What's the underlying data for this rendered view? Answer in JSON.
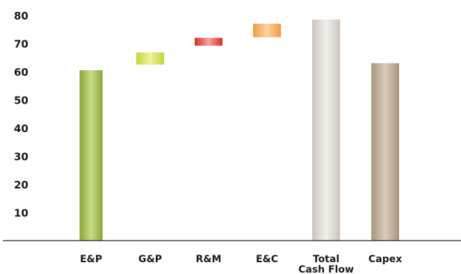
{
  "chart_data": {
    "type": "bar",
    "subtype": "waterfall",
    "categories": [
      "E&P",
      "G&P",
      "R&M",
      "E&C",
      "Total Cash Flow",
      "Capex"
    ],
    "category_labels": [
      [
        "E&P"
      ],
      [
        "G&P"
      ],
      [
        "R&M"
      ],
      [
        "E&C"
      ],
      [
        "Total",
        "Cash Flow"
      ],
      [
        "Capex"
      ]
    ],
    "bars": [
      {
        "category": "E&P",
        "start": 0,
        "end": 60.5
      },
      {
        "category": "G&P",
        "start": 62.5,
        "end": 66.8
      },
      {
        "category": "R&M",
        "start": 69.2,
        "end": 72.0
      },
      {
        "category": "E&C",
        "start": 72.2,
        "end": 77.0
      },
      {
        "category": "Total Cash Flow",
        "start": 0,
        "end": 78.5
      },
      {
        "category": "Capex",
        "start": 0,
        "end": 63.0
      }
    ],
    "title": "",
    "xlabel": "",
    "ylabel": "",
    "ylim": [
      0,
      80
    ],
    "yticks": [
      10,
      20,
      30,
      40,
      50,
      60,
      70,
      80
    ],
    "grid": false,
    "legend": "none",
    "colors": [
      "#8aa63a",
      "#c2d43a",
      "#d92b22",
      "#f39a3c",
      "#cbc4bc",
      "#a8957c"
    ],
    "highlight_colors": [
      "#c9dc88",
      "#eef39a",
      "#f7a2a0",
      "#fcd3a3",
      "#f2efeb",
      "#d8ccbb"
    ]
  }
}
